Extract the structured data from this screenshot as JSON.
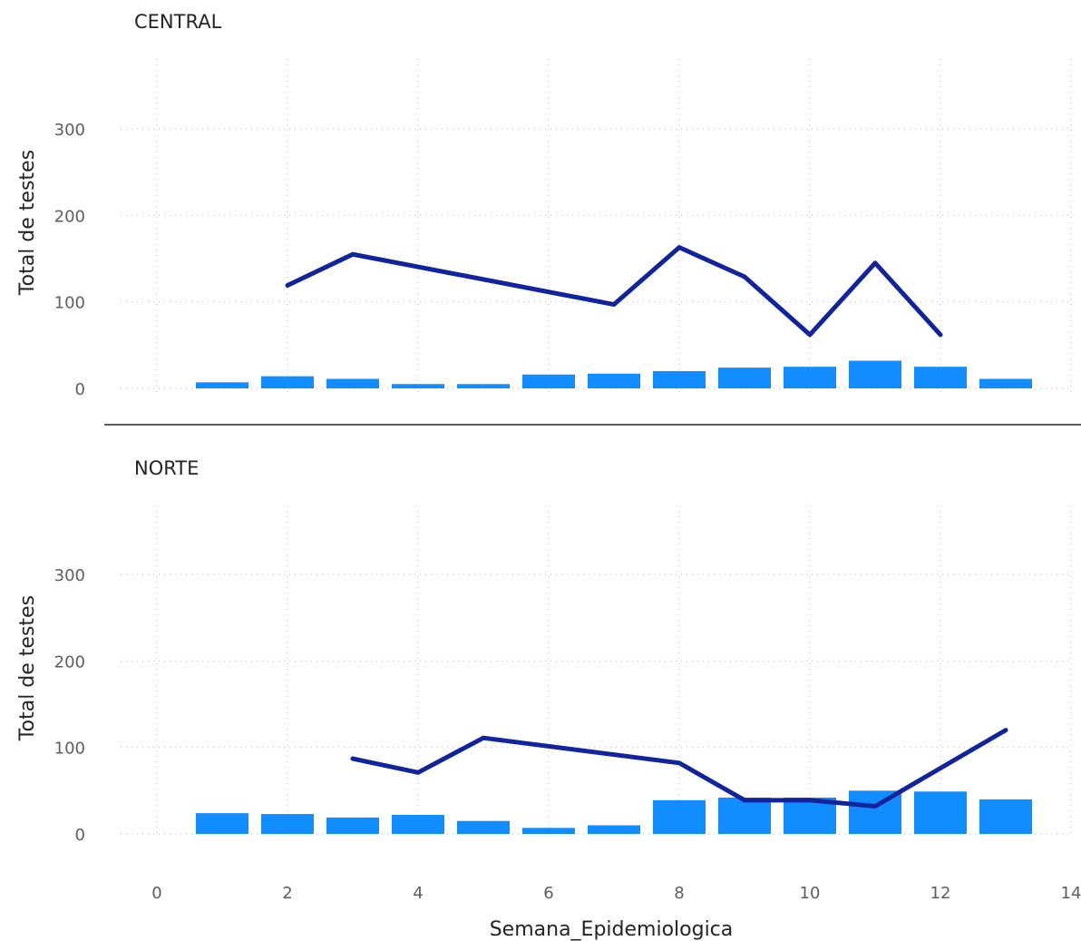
{
  "chart_data": {
    "type": "bar+line",
    "xlabel": "Semana_Epidemiologica",
    "ylabel": "Total de testes",
    "xlim": [
      0,
      14
    ],
    "ylim": [
      0,
      300
    ],
    "x_ticks": [
      0,
      2,
      4,
      6,
      8,
      10,
      12,
      14
    ],
    "y_ticks": [
      0,
      100,
      200,
      300
    ],
    "grid": true,
    "colors": {
      "bar": "#118dff",
      "line": "#12239e"
    },
    "panels": [
      {
        "title": "CENTRAL",
        "bars": {
          "x": [
            1,
            2,
            3,
            4,
            5,
            6,
            7,
            8,
            9,
            10,
            11,
            12,
            13
          ],
          "values": [
            7,
            14,
            11,
            5,
            5,
            16,
            17,
            20,
            24,
            25,
            32,
            25,
            11
          ]
        },
        "line": {
          "x": [
            2,
            3,
            7,
            8,
            9,
            10,
            11,
            12
          ],
          "values": [
            119,
            155,
            97,
            163,
            129,
            62,
            145,
            62
          ]
        }
      },
      {
        "title": "NORTE",
        "bars": {
          "x": [
            1,
            2,
            3,
            4,
            5,
            6,
            7,
            8,
            9,
            10,
            11,
            12,
            13
          ],
          "values": [
            24,
            23,
            19,
            22,
            15,
            7,
            10,
            39,
            42,
            42,
            50,
            49,
            40
          ]
        },
        "line": {
          "x": [
            3,
            4,
            5,
            8,
            9,
            10,
            11,
            13
          ],
          "values": [
            87,
            71,
            111,
            82,
            39,
            39,
            32,
            120
          ]
        }
      }
    ]
  }
}
